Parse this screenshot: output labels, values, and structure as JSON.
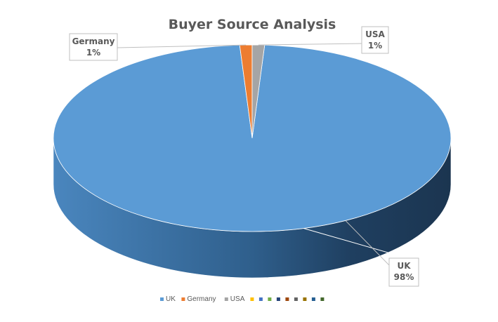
{
  "chart_data": {
    "type": "pie",
    "title": "Buyer Source Analysis",
    "categories": [
      "UK",
      "Germany",
      "USA"
    ],
    "values": [
      98,
      1,
      1
    ],
    "value_labels": [
      "98%",
      "1%",
      "1%"
    ],
    "colors": [
      "#5B9BD5",
      "#ED7D31",
      "#A5A5A5"
    ],
    "legend_extra_colors": [
      "#FFC000",
      "#4472C4",
      "#70AD47",
      "#264478",
      "#9E480E",
      "#636363",
      "#997300",
      "#255E91",
      "#43682B"
    ],
    "legend_position": "bottom",
    "style": "3d"
  }
}
